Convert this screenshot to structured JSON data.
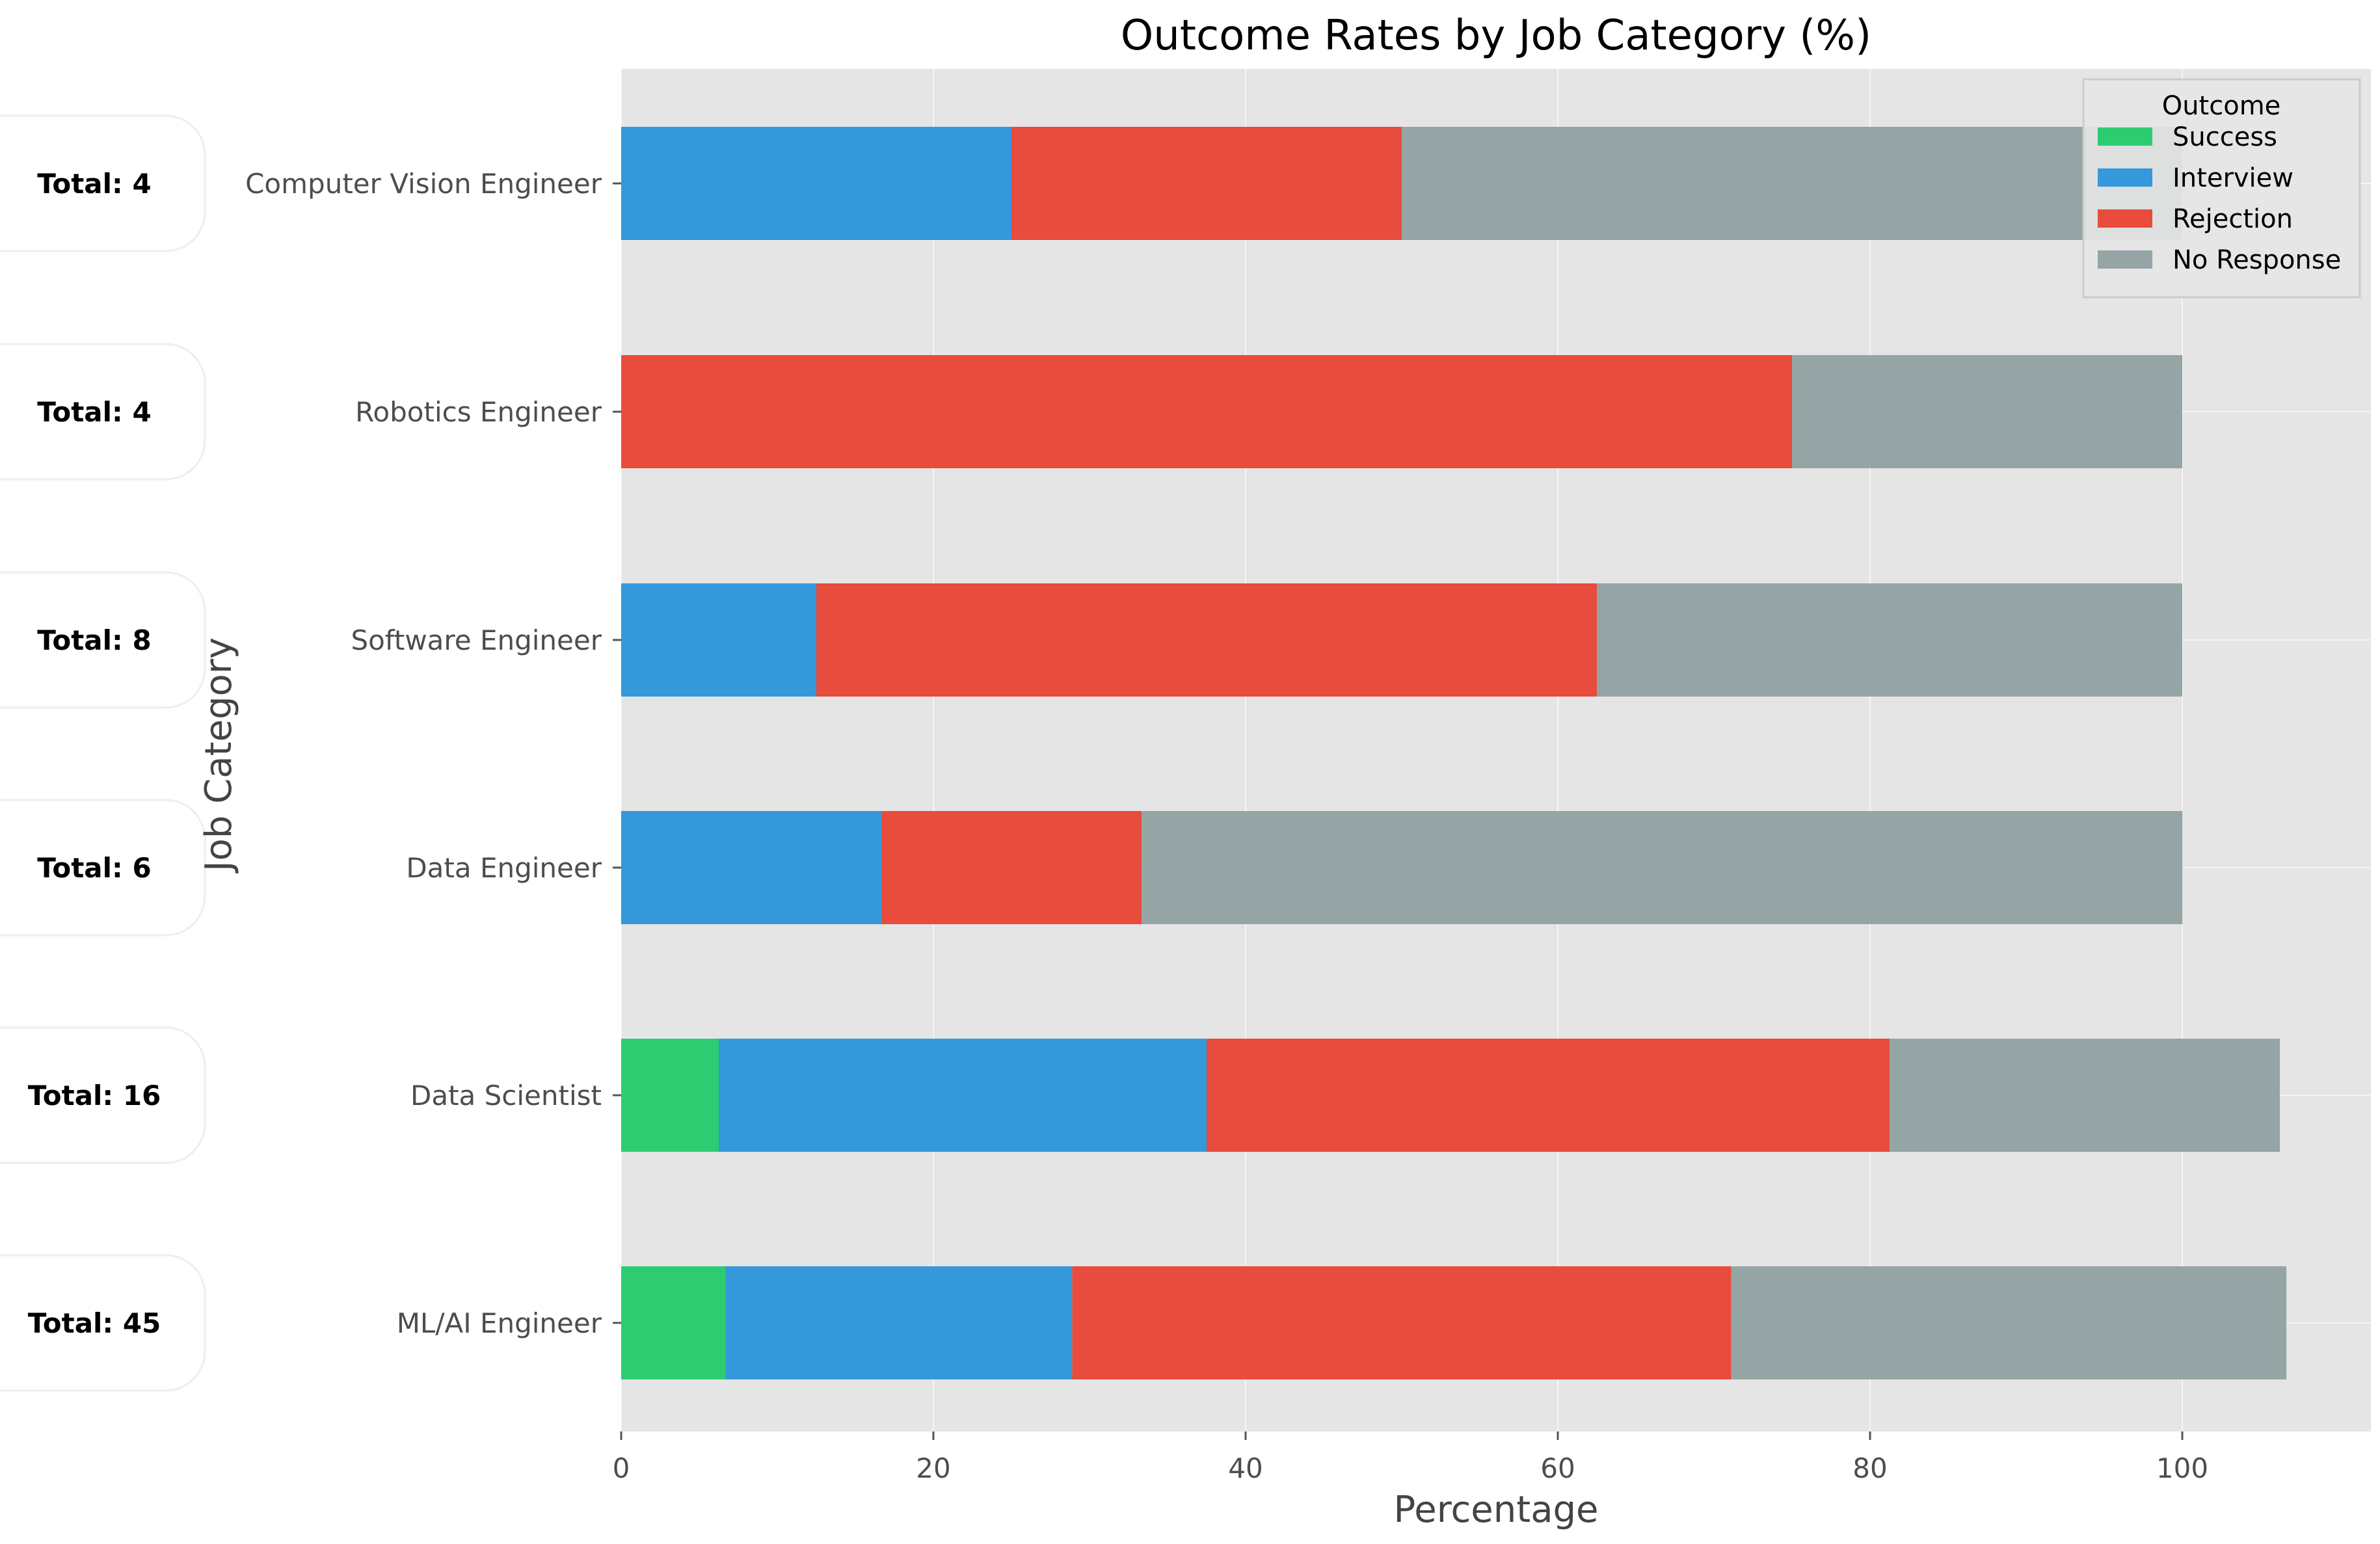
{
  "chart_data": {
    "type": "bar",
    "orientation": "horizontal",
    "stacked": true,
    "title": "Outcome Rates by Job Category (%)",
    "xlabel": "Percentage",
    "ylabel": "Job Category",
    "xlim": [
      0,
      112
    ],
    "xticks": [
      0,
      20,
      40,
      60,
      80,
      100
    ],
    "grid": true,
    "legend": {
      "title": "Outcome",
      "placement": "top-right"
    },
    "categories": [
      "Computer Vision Engineer",
      "Robotics Engineer",
      "Software Engineer",
      "Data Engineer",
      "Data Scientist",
      "ML/AI Engineer"
    ],
    "totals": [
      "Total: 4",
      "Total: 4",
      "Total: 8",
      "Total: 6",
      "Total: 16",
      "Total: 45"
    ],
    "series": [
      {
        "name": "Success",
        "color": "#2ecc71",
        "values": [
          0,
          0,
          0,
          0,
          6.25,
          6.67
        ]
      },
      {
        "name": "Interview",
        "color": "#3498db",
        "values": [
          25,
          0,
          12.5,
          16.67,
          31.25,
          22.22
        ]
      },
      {
        "name": "Rejection",
        "color": "#e74c3c",
        "values": [
          25,
          75,
          50,
          16.67,
          43.75,
          42.22
        ]
      },
      {
        "name": "No Response",
        "color": "#95a5a6",
        "values": [
          50,
          25,
          37.5,
          66.67,
          25,
          35.56
        ]
      }
    ]
  }
}
